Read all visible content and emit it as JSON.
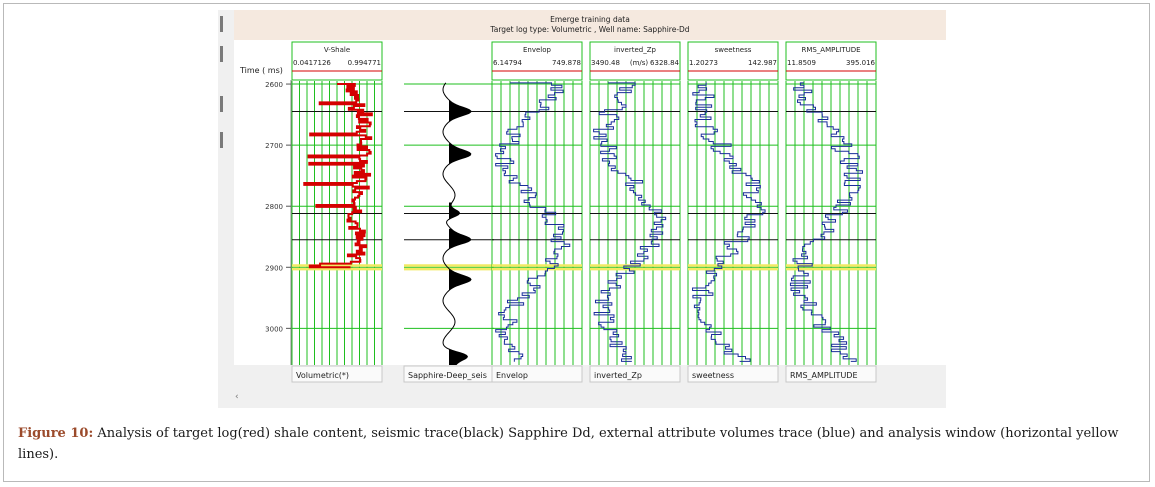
{
  "window": {
    "title_line1": "Emerge training data",
    "title_line2": "Target log type: Volumetric , Well name: Sapphire-Dd"
  },
  "time_axis": {
    "label": "Time ( ms)",
    "ticks": [
      "2600",
      "2700",
      "2800",
      "2900",
      "3000"
    ],
    "tick_values": [
      2600,
      2700,
      2800,
      2900,
      3000
    ],
    "range": [
      2600,
      3060
    ]
  },
  "tracks": [
    {
      "id": "vshale",
      "header": "V-Shale",
      "min": "0.0417126",
      "max": "0.994771",
      "footer": "Volumetric(*)",
      "color": "#d40000"
    },
    {
      "id": "seismic",
      "header": "",
      "min": "",
      "max": "",
      "footer": "Sapphire-Deep_seis",
      "color": "#000000"
    },
    {
      "id": "envelop",
      "header": "Envelop",
      "min": "6.14794",
      "max": "749.878",
      "footer": "Envelop",
      "color": "#1a2f9a"
    },
    {
      "id": "zp",
      "header": "inverted_Zp",
      "min": "3490.48",
      "unit": "(m/s)",
      "max": "6328.84",
      "footer": "inverted_Zp",
      "color": "#1a2f9a"
    },
    {
      "id": "sweet",
      "header": "sweetness",
      "min": "1.20273",
      "max": "142.987",
      "footer": "sweetness",
      "color": "#1a2f9a"
    },
    {
      "id": "rms",
      "header": "RMS_AMPLITUDE",
      "min": "11.8509",
      "max": "395.016",
      "footer": "RMS_AMPLITUDE",
      "color": "#1a2f9a"
    }
  ],
  "markers": {
    "black_times": [
      2645,
      2812,
      2855
    ],
    "yellow_times": [
      2897,
      2903
    ],
    "grid_color": "#1fbf1f"
  },
  "caption": {
    "label": "Figure 10:",
    "text": " Analysis of target log(red) shale content, seismic trace(black) Sapphire Dd, external attribute volumes trace (blue) and analysis window (horizontal yellow lines)."
  }
}
